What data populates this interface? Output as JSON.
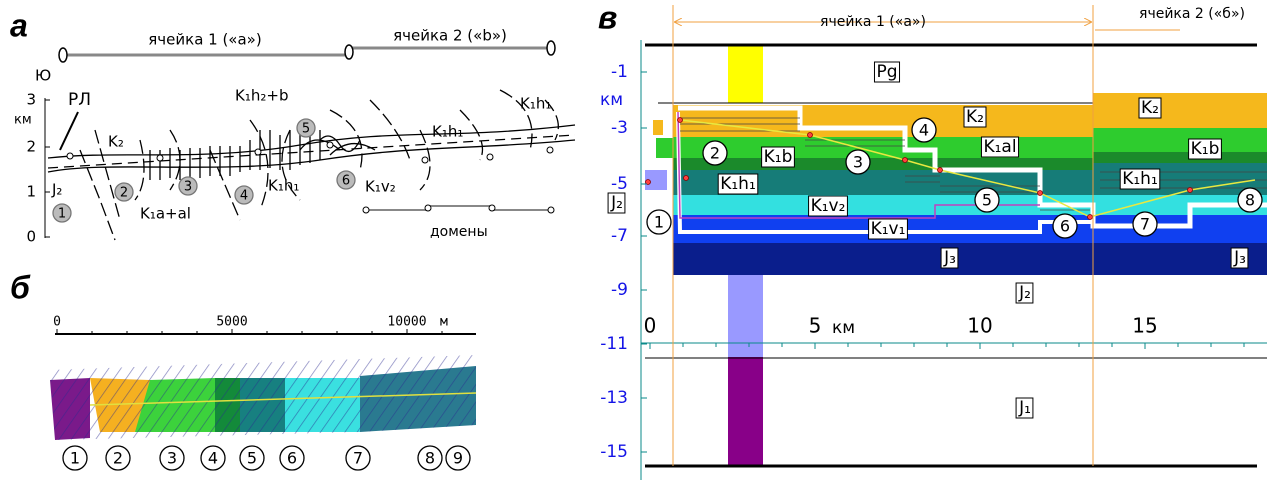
{
  "panel_a": {
    "letter": "а",
    "cell1": "ячейка 1 («a»)",
    "cell2": "ячейка 2 («b»)",
    "south": "Ю",
    "yticks": [
      "3",
      "2",
      "1",
      "0"
    ],
    "unit": "км",
    "rl": "РЛ",
    "units": [
      "K₂",
      "K₁h₂+b",
      "K₁h₁",
      "K₁h₁",
      "K₁h₁",
      "J₂",
      "K₁a+al",
      "K₁v₂"
    ],
    "domains": "домены",
    "markers": [
      "1",
      "2",
      "3",
      "4",
      "5",
      "6"
    ]
  },
  "panel_b": {
    "letter": "б",
    "scale": [
      "0",
      "5000",
      "10000"
    ],
    "scale_unit": "м",
    "markers": [
      "1",
      "2",
      "3",
      "4",
      "5",
      "6",
      "7",
      "8",
      "9"
    ]
  },
  "panel_c": {
    "letter": "в",
    "cell1": "ячейка 1 («а»)",
    "cell2": "ячейка 2 («б»)",
    "yticks": [
      "-1",
      "-3",
      "-5",
      "-7",
      "-9",
      "-11",
      "-13",
      "-15"
    ],
    "y_unit": "км",
    "xticks": [
      "0",
      "5",
      "10",
      "15"
    ],
    "x_unit": "км",
    "units": [
      "Pg",
      "K₂",
      "K₂",
      "K₁al",
      "K₁b",
      "K₁b",
      "K₁h₁",
      "K₁h₁",
      "K₁v₂",
      "K₁v₁",
      "J₃",
      "J₃",
      "J₂",
      "J₂",
      "J₁"
    ],
    "markers": [
      "1",
      "2",
      "3",
      "4",
      "5",
      "6",
      "7",
      "8"
    ]
  }
}
